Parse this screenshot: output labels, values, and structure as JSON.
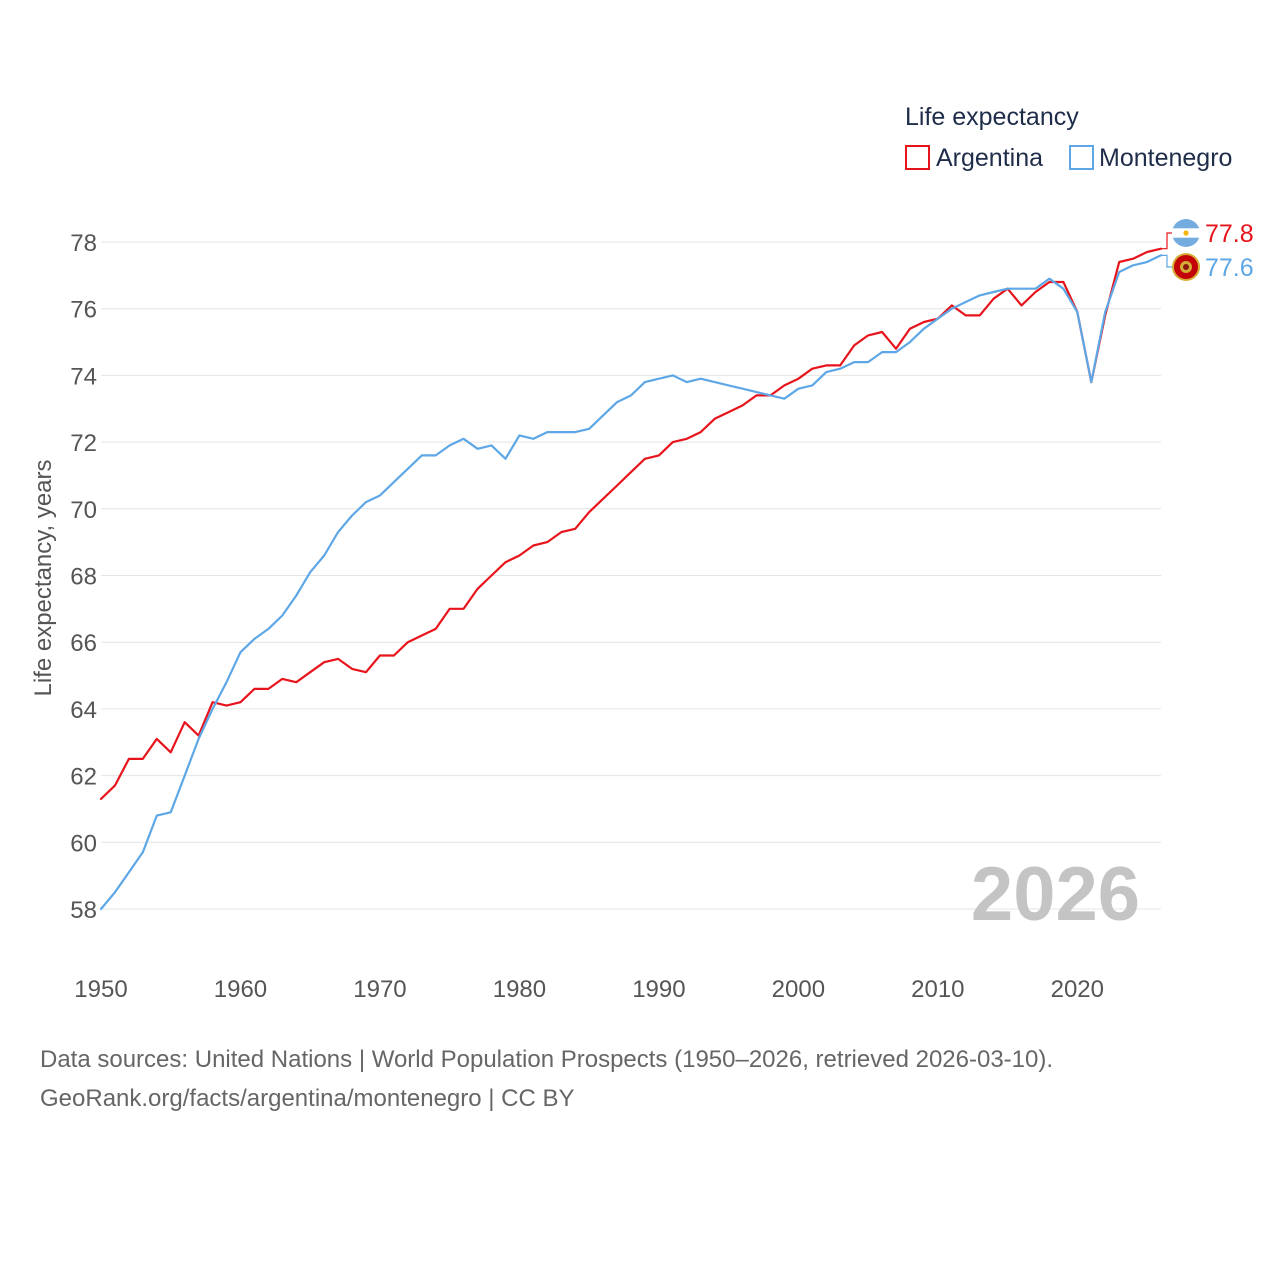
{
  "chart_data": {
    "type": "line",
    "title": "Life expectancy",
    "xlabel": "",
    "ylabel": "Life expectancy, years",
    "xlim": [
      1950,
      2026
    ],
    "ylim": [
      57,
      79
    ],
    "x_ticks": [
      1950,
      1960,
      1970,
      1980,
      1990,
      2000,
      2010,
      2020
    ],
    "y_ticks": [
      58,
      60,
      62,
      64,
      66,
      68,
      70,
      72,
      74,
      76,
      78
    ],
    "grid": true,
    "legend_position": "top-right",
    "watermark_year": "2026",
    "series": [
      {
        "name": "Argentina",
        "color": "#e8141c",
        "end_label": "77.8",
        "flag_icon": "argentina-flag-icon",
        "x": [
          1950,
          1951,
          1952,
          1953,
          1954,
          1955,
          1956,
          1957,
          1958,
          1959,
          1960,
          1961,
          1962,
          1963,
          1964,
          1965,
          1966,
          1967,
          1968,
          1969,
          1970,
          1971,
          1972,
          1973,
          1974,
          1975,
          1976,
          1977,
          1978,
          1979,
          1980,
          1981,
          1982,
          1983,
          1984,
          1985,
          1986,
          1987,
          1988,
          1989,
          1990,
          1991,
          1992,
          1993,
          1994,
          1995,
          1996,
          1997,
          1998,
          1999,
          2000,
          2001,
          2002,
          2003,
          2004,
          2005,
          2006,
          2007,
          2008,
          2009,
          2010,
          2011,
          2012,
          2013,
          2014,
          2015,
          2016,
          2017,
          2018,
          2019,
          2020,
          2021,
          2022,
          2023,
          2024,
          2025,
          2026
        ],
        "values": [
          61.3,
          61.7,
          62.5,
          62.5,
          63.1,
          62.7,
          63.6,
          63.2,
          64.2,
          64.1,
          64.2,
          64.6,
          64.6,
          64.9,
          64.8,
          65.1,
          65.4,
          65.5,
          65.2,
          65.1,
          65.6,
          65.6,
          66.0,
          66.2,
          66.4,
          67.0,
          67.0,
          67.6,
          68.0,
          68.4,
          68.6,
          68.9,
          69.0,
          69.3,
          69.4,
          69.9,
          70.3,
          70.7,
          71.1,
          71.5,
          71.6,
          72.0,
          72.1,
          72.3,
          72.7,
          72.9,
          73.1,
          73.4,
          73.4,
          73.7,
          73.9,
          74.2,
          74.3,
          74.3,
          74.9,
          75.2,
          75.3,
          74.8,
          75.4,
          75.6,
          75.7,
          76.1,
          75.8,
          75.8,
          76.3,
          76.6,
          76.1,
          76.5,
          76.8,
          76.8,
          75.9,
          73.8,
          75.8,
          77.4,
          77.5,
          77.7,
          77.8
        ]
      },
      {
        "name": "Montenegro",
        "color": "#5ea7e6",
        "end_label": "77.6",
        "flag_icon": "montenegro-flag-icon",
        "x": [
          1950,
          1951,
          1952,
          1953,
          1954,
          1955,
          1956,
          1957,
          1958,
          1959,
          1960,
          1961,
          1962,
          1963,
          1964,
          1965,
          1966,
          1967,
          1968,
          1969,
          1970,
          1971,
          1972,
          1973,
          1974,
          1975,
          1976,
          1977,
          1978,
          1979,
          1980,
          1981,
          1982,
          1983,
          1984,
          1985,
          1986,
          1987,
          1988,
          1989,
          1990,
          1991,
          1992,
          1993,
          1994,
          1995,
          1996,
          1997,
          1998,
          1999,
          2000,
          2001,
          2002,
          2003,
          2004,
          2005,
          2006,
          2007,
          2008,
          2009,
          2010,
          2011,
          2012,
          2013,
          2014,
          2015,
          2016,
          2017,
          2018,
          2019,
          2020,
          2021,
          2022,
          2023,
          2024,
          2025,
          2026
        ],
        "values": [
          58.0,
          58.5,
          59.1,
          59.7,
          60.8,
          60.9,
          62.0,
          63.1,
          64.0,
          64.8,
          65.7,
          66.1,
          66.4,
          66.8,
          67.4,
          68.1,
          68.6,
          69.3,
          69.8,
          70.2,
          70.4,
          70.8,
          71.2,
          71.6,
          71.6,
          71.9,
          72.1,
          71.8,
          71.9,
          71.5,
          72.2,
          72.1,
          72.3,
          72.3,
          72.3,
          72.4,
          72.8,
          73.2,
          73.4,
          73.8,
          73.9,
          74.0,
          73.8,
          73.9,
          73.8,
          73.7,
          73.6,
          73.5,
          73.4,
          73.3,
          73.6,
          73.7,
          74.1,
          74.2,
          74.4,
          74.4,
          74.7,
          74.7,
          75.0,
          75.4,
          75.7,
          76.0,
          76.2,
          76.4,
          76.5,
          76.6,
          76.6,
          76.6,
          76.9,
          76.6,
          75.9,
          73.8,
          75.9,
          77.1,
          77.3,
          77.4,
          77.6
        ]
      }
    ]
  },
  "source": {
    "line1": "Data sources: United Nations | World Population Prospects (1950–2026, retrieved 2026-03-10).",
    "line2": "GeoRank.org/facts/argentina/montenegro | CC BY"
  }
}
